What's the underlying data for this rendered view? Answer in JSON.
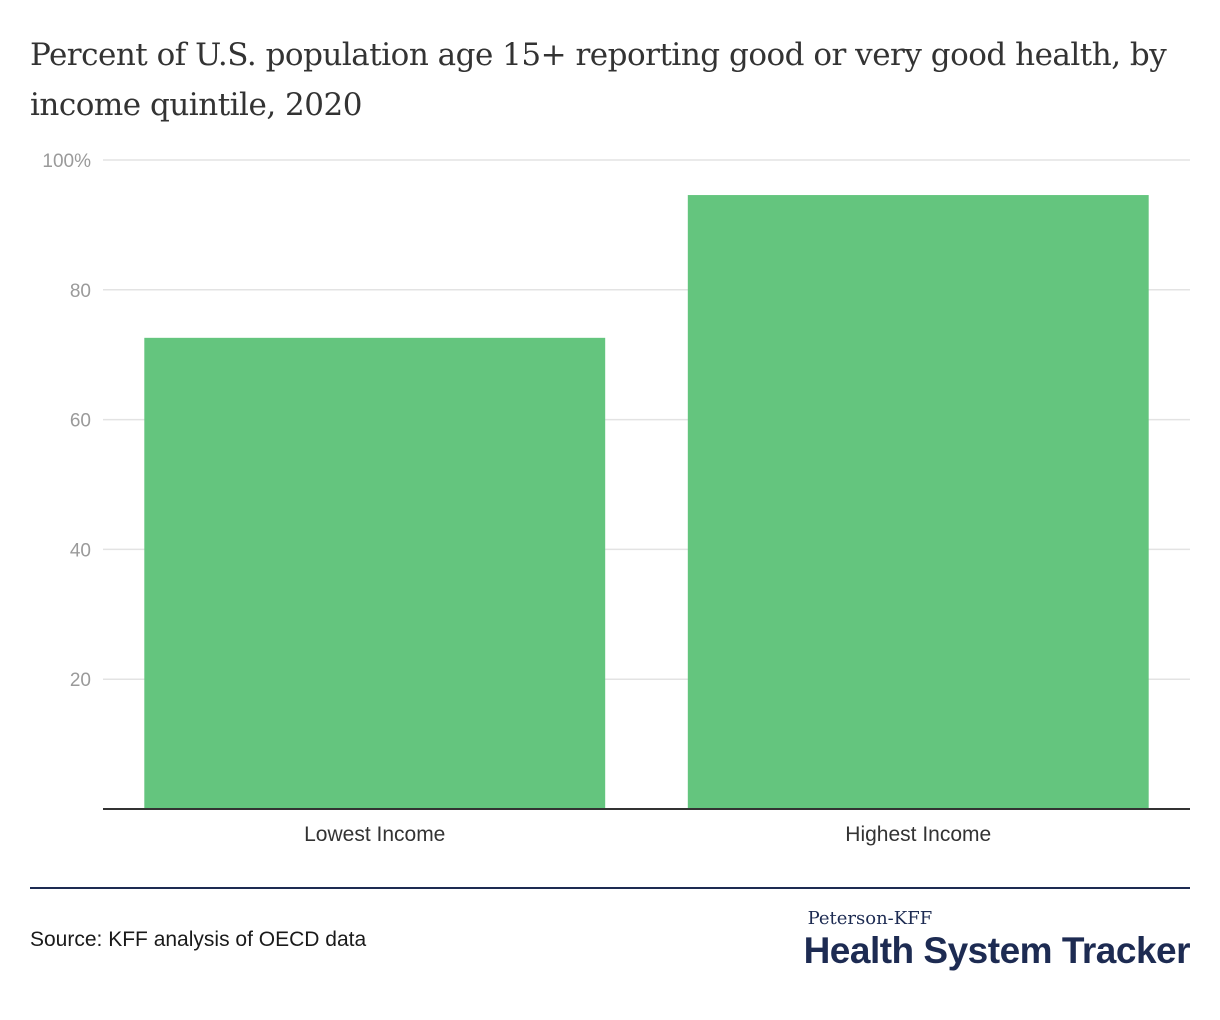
{
  "chart_data": {
    "type": "bar",
    "title": "Percent of U.S. population age 15+ reporting good or very good health, by income quintile, 2020",
    "categories": [
      "Lowest Income",
      "Highest Income"
    ],
    "values": [
      72.6,
      94.6
    ],
    "ylim": [
      0,
      100
    ],
    "yticks": [
      20,
      40,
      60,
      80,
      100
    ],
    "ytick_labels": [
      "20",
      "40",
      "60",
      "80",
      "100%"
    ],
    "xlabel": "",
    "ylabel": "",
    "grid": true,
    "colors": {
      "bar": "#64c57e",
      "grid": "#e3e3e3",
      "axis": "#333333"
    }
  },
  "footer": {
    "source": "Source: KFF analysis of OECD data",
    "logo_top": "Peterson-KFF",
    "logo_main": "Health System Tracker",
    "rule_color": "#1d2b52"
  }
}
